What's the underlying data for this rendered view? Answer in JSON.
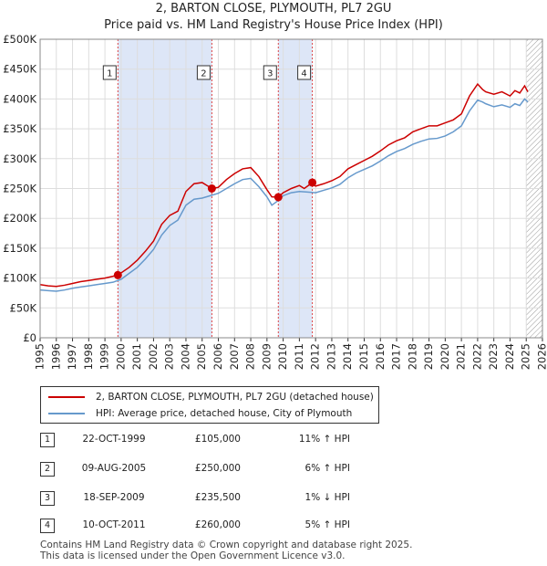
{
  "header": {
    "title": "2, BARTON CLOSE, PLYMOUTH, PL7 2GU",
    "subtitle": "Price paid vs. HM Land Registry's House Price Index (HPI)"
  },
  "colors": {
    "property_line": "#cc0000",
    "hpi_line": "#6699cc",
    "shade": "#dde6f7",
    "grid": "#dddddd",
    "vline": "#dd4444"
  },
  "chart_data": {
    "type": "line",
    "title": "2, BARTON CLOSE, PLYMOUTH, PL7 2GU",
    "subtitle": "Price paid vs. HM Land Registry's House Price Index (HPI)",
    "xlabel": "",
    "ylabel": "",
    "xlim": [
      1995,
      2026
    ],
    "ylim": [
      0,
      500000
    ],
    "grid": true,
    "yticks": [
      0,
      50000,
      100000,
      150000,
      200000,
      250000,
      300000,
      350000,
      400000,
      450000,
      500000
    ],
    "ytick_labels": [
      "£0",
      "£50K",
      "£100K",
      "£150K",
      "£200K",
      "£250K",
      "£300K",
      "£350K",
      "£400K",
      "£450K",
      "£500K"
    ],
    "xticks": [
      1995,
      1996,
      1997,
      1998,
      1999,
      2000,
      2001,
      2002,
      2003,
      2004,
      2005,
      2006,
      2007,
      2008,
      2009,
      2010,
      2011,
      2012,
      2013,
      2014,
      2015,
      2016,
      2017,
      2018,
      2019,
      2020,
      2021,
      2022,
      2023,
      2024,
      2025,
      2026
    ],
    "xtick_labels": [
      "1995",
      "1996",
      "1997",
      "1998",
      "1999",
      "2000",
      "2001",
      "2002",
      "2003",
      "2004",
      "2005",
      "2006",
      "2007",
      "2008",
      "2009",
      "2010",
      "2011",
      "2012",
      "2013",
      "2014",
      "2015",
      "2016",
      "2017",
      "2018",
      "2019",
      "2020",
      "2021",
      "2022",
      "2023",
      "2024",
      "2025",
      "2026"
    ],
    "shaded_ranges": [
      [
        1999.8,
        2005.6
      ],
      [
        2009.7,
        2011.8
      ]
    ],
    "hatched_from": 2025.0,
    "series": [
      {
        "name": "2, BARTON CLOSE, PLYMOUTH, PL7 2GU (detached house)",
        "x": [
          1995,
          1995.5,
          1996,
          1996.5,
          1997,
          1997.5,
          1998,
          1998.5,
          1999,
          1999.5,
          1999.8,
          2000.5,
          2001,
          2001.5,
          2002,
          2002.5,
          2003,
          2003.5,
          2004,
          2004.5,
          2005,
          2005.3,
          2005.6,
          2006,
          2006.5,
          2007,
          2007.5,
          2008,
          2008.5,
          2009,
          2009.3,
          2009.7,
          2010,
          2010.5,
          2011,
          2011.3,
          2011.8,
          2012,
          2012.5,
          2013,
          2013.5,
          2014,
          2014.5,
          2015,
          2015.5,
          2016,
          2016.5,
          2017,
          2017.5,
          2018,
          2018.5,
          2019,
          2019.5,
          2020,
          2020.5,
          2021,
          2021.5,
          2022,
          2022.3,
          2022.5,
          2023,
          2023.5,
          2024,
          2024.3,
          2024.6,
          2024.9,
          2025.1
        ],
        "values": [
          89000,
          87000,
          86000,
          88000,
          91000,
          94000,
          96000,
          98000,
          100000,
          103000,
          105000,
          118000,
          130000,
          145000,
          162000,
          190000,
          205000,
          212000,
          245000,
          258000,
          260000,
          255000,
          250000,
          252000,
          265000,
          275000,
          283000,
          285000,
          270000,
          248000,
          236000,
          235500,
          243000,
          250000,
          255000,
          250000,
          260000,
          254000,
          258000,
          263000,
          270000,
          283000,
          290000,
          297000,
          304000,
          313000,
          323000,
          330000,
          335000,
          345000,
          350000,
          355000,
          355000,
          360000,
          365000,
          375000,
          405000,
          425000,
          416000,
          412000,
          408000,
          412000,
          405000,
          414000,
          410000,
          422000,
          412000
        ]
      },
      {
        "name": "HPI: Average price, detached house, City of Plymouth",
        "x": [
          1995,
          1995.5,
          1996,
          1996.5,
          1997,
          1997.5,
          1998,
          1998.5,
          1999,
          1999.5,
          2000,
          2000.5,
          2001,
          2001.5,
          2002,
          2002.5,
          2003,
          2003.5,
          2004,
          2004.5,
          2005,
          2005.5,
          2006,
          2006.5,
          2007,
          2007.5,
          2008,
          2008.5,
          2009,
          2009.3,
          2009.7,
          2010,
          2010.5,
          2011,
          2011.5,
          2012,
          2012.5,
          2013,
          2013.5,
          2014,
          2014.5,
          2015,
          2015.5,
          2016,
          2016.5,
          2017,
          2017.5,
          2018,
          2018.5,
          2019,
          2019.5,
          2020,
          2020.5,
          2021,
          2021.5,
          2022,
          2022.3,
          2022.5,
          2023,
          2023.5,
          2024,
          2024.3,
          2024.6,
          2024.9,
          2025.1
        ],
        "values": [
          80000,
          79000,
          78000,
          80000,
          83000,
          85000,
          87000,
          89000,
          91000,
          93000,
          98000,
          108000,
          118000,
          132000,
          148000,
          172000,
          188000,
          197000,
          222000,
          232000,
          234000,
          238000,
          242000,
          250000,
          258000,
          265000,
          267000,
          253000,
          236000,
          222000,
          230000,
          238000,
          243000,
          245000,
          244000,
          243000,
          247000,
          251000,
          257000,
          268000,
          276000,
          282000,
          288000,
          296000,
          305000,
          312000,
          317000,
          324000,
          329000,
          333000,
          334000,
          338000,
          345000,
          355000,
          380000,
          398000,
          395000,
          392000,
          387000,
          390000,
          386000,
          392000,
          389000,
          400000,
          395000
        ]
      }
    ],
    "sales": [
      {
        "label": "1",
        "x": 1999.8,
        "price": 105000
      },
      {
        "label": "2",
        "x": 2005.6,
        "price": 250000
      },
      {
        "label": "3",
        "x": 2009.7,
        "price": 235500
      },
      {
        "label": "4",
        "x": 2011.8,
        "price": 260000
      }
    ]
  },
  "legend": {
    "property_label": "2, BARTON CLOSE, PLYMOUTH, PL7 2GU (detached house)",
    "hpi_label": "HPI: Average price, detached house, City of Plymouth"
  },
  "sales_table": [
    {
      "num": "1",
      "date": "22-OCT-1999",
      "price": "£105,000",
      "hpi": "11% ↑ HPI"
    },
    {
      "num": "2",
      "date": "09-AUG-2005",
      "price": "£250,000",
      "hpi": "6% ↑ HPI"
    },
    {
      "num": "3",
      "date": "18-SEP-2009",
      "price": "£235,500",
      "hpi": "1% ↓ HPI"
    },
    {
      "num": "4",
      "date": "10-OCT-2011",
      "price": "£260,000",
      "hpi": "5% ↑ HPI"
    }
  ],
  "footer": {
    "line1": "Contains HM Land Registry data © Crown copyright and database right 2025.",
    "line2": "This data is licensed under the Open Government Licence v3.0."
  }
}
